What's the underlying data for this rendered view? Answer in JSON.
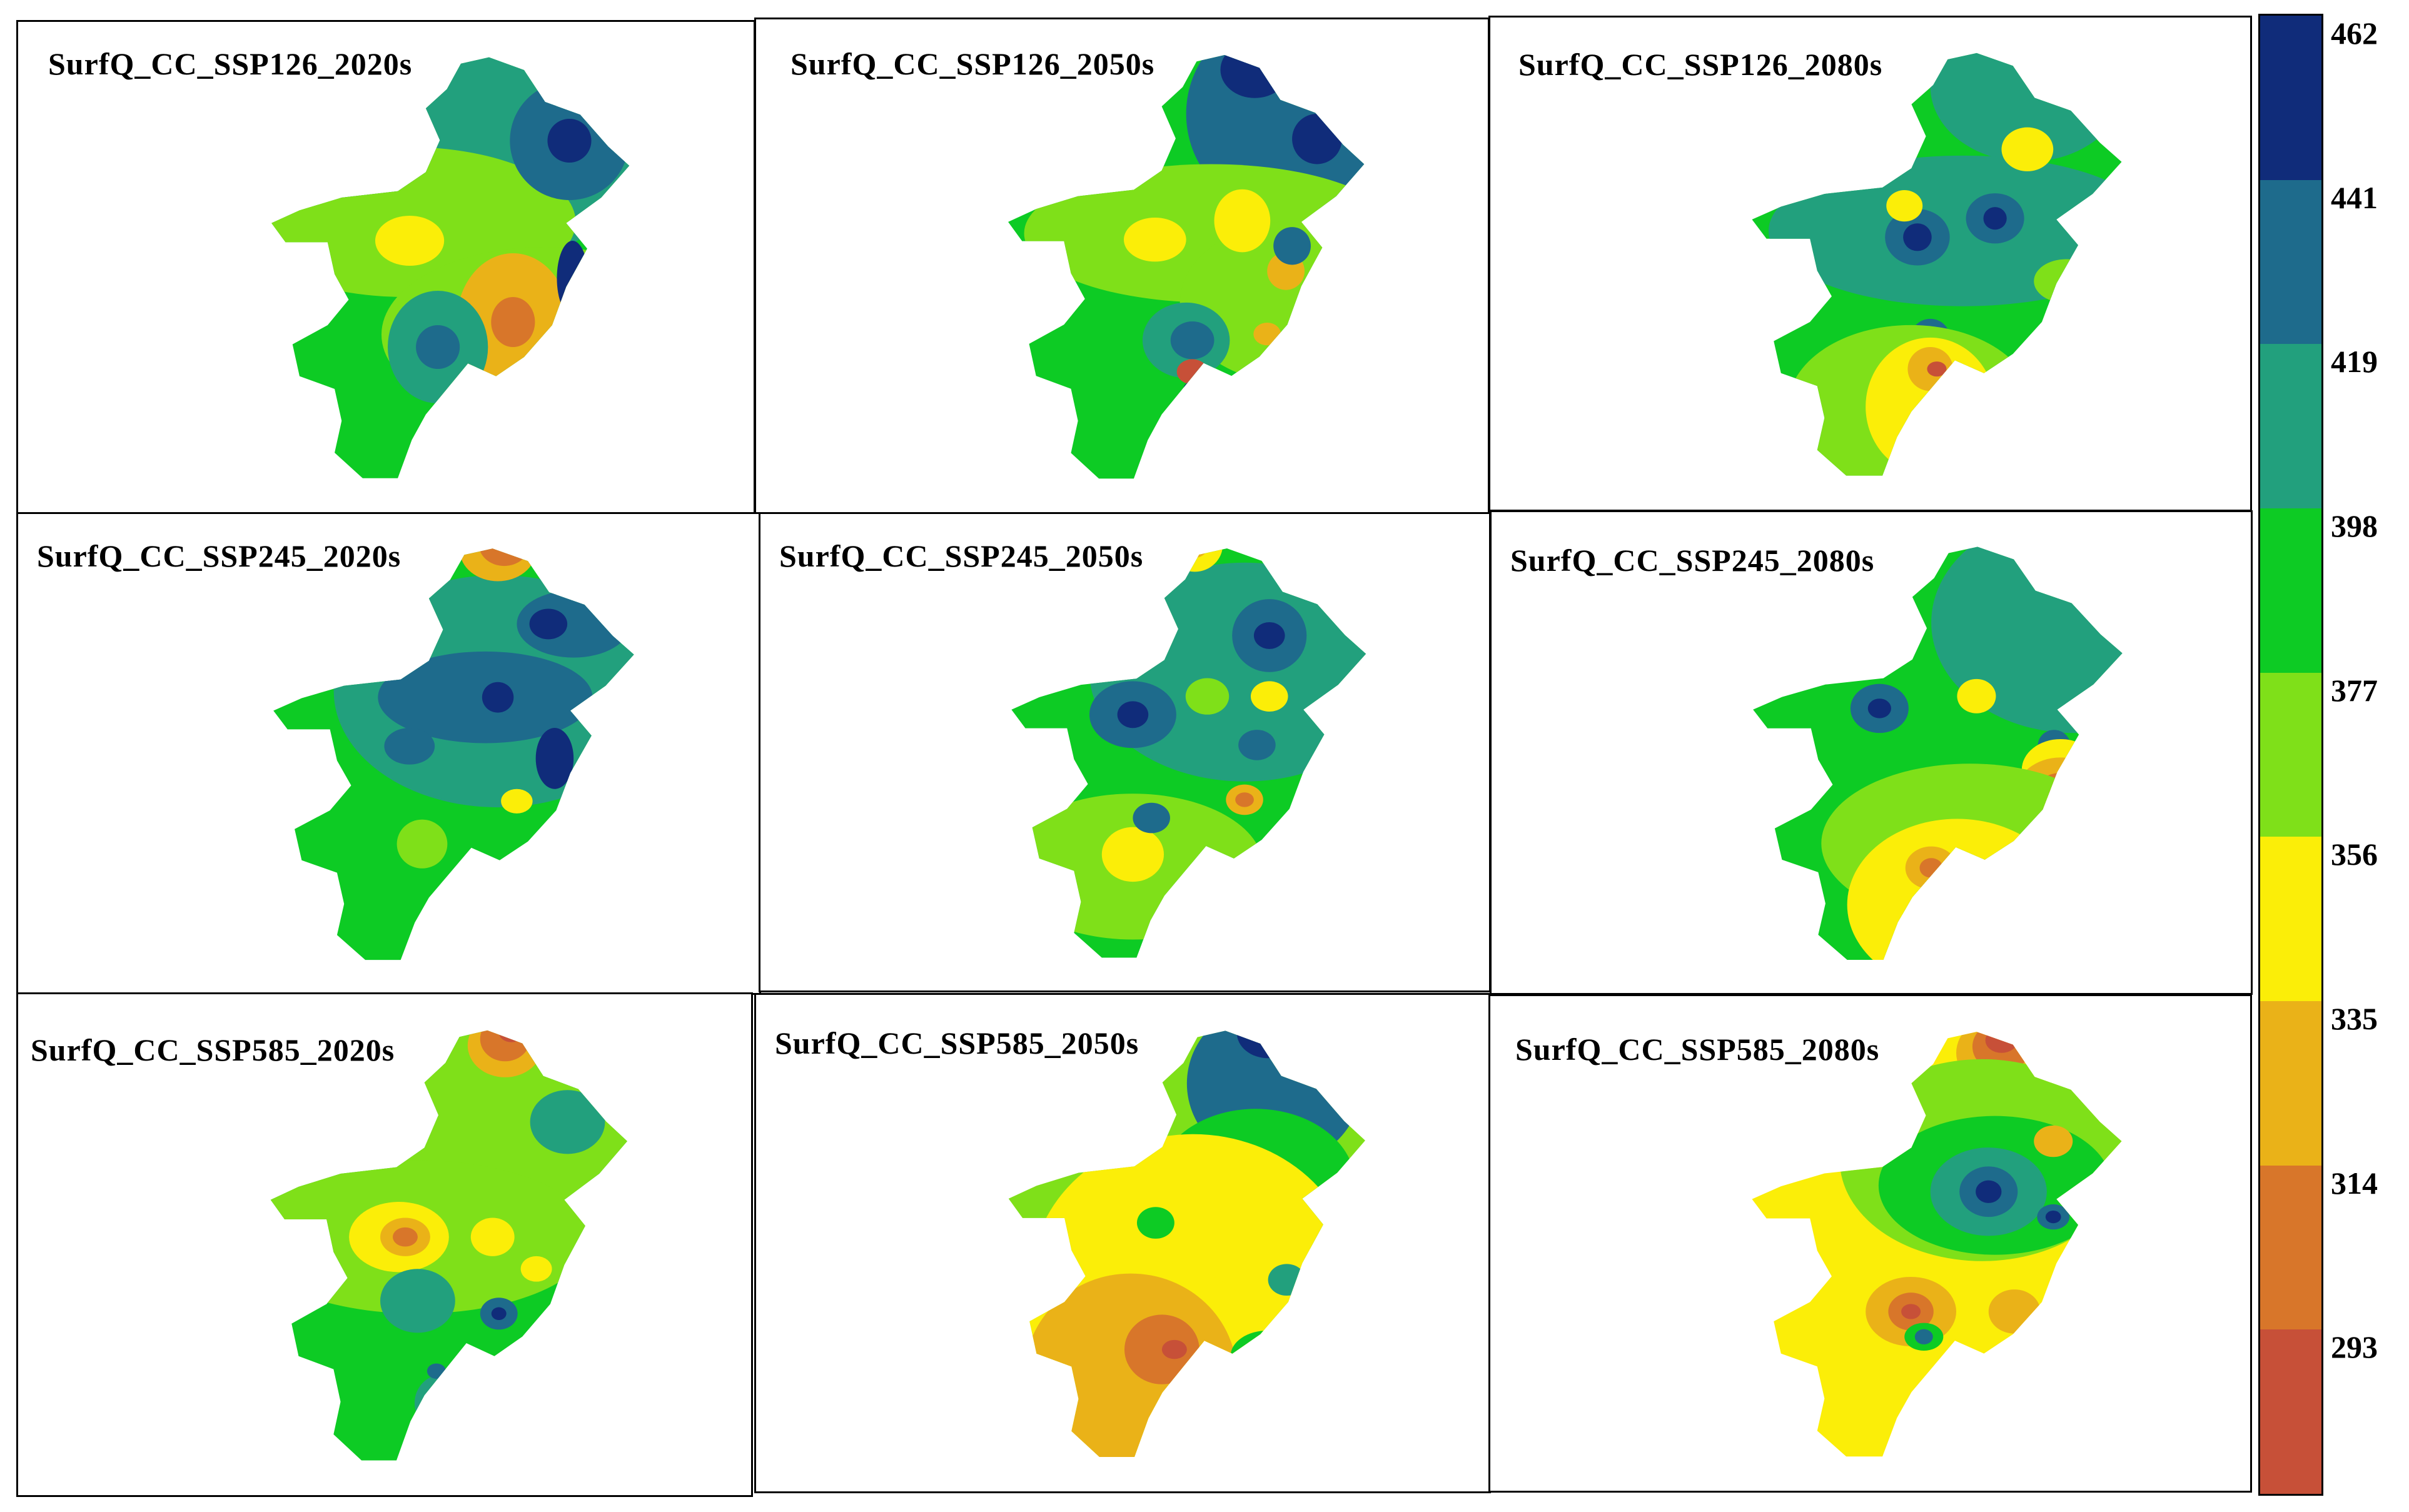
{
  "legend": {
    "labels": [
      "462",
      "441",
      "419",
      "398",
      "377",
      "356",
      "335",
      "314",
      "293"
    ],
    "colors": [
      "#102c7a",
      "#1e6b8c",
      "#22a07d",
      "#0dcb24",
      "#7fe019",
      "#fbee08",
      "#eab218",
      "#d8762a",
      "#c75038"
    ]
  },
  "panels": [
    {
      "title": "SurfQ_CC_SSP126_2020s"
    },
    {
      "title": "SurfQ_CC_SSP126_2050s"
    },
    {
      "title": "SurfQ_CC_SSP126_2080s"
    },
    {
      "title": "SurfQ_CC_SSP245_2020s"
    },
    {
      "title": "SurfQ_CC_SSP245_2050s"
    },
    {
      "title": "SurfQ_CC_SSP245_2080s"
    },
    {
      "title": "SurfQ_CC_SSP585_2020s"
    },
    {
      "title": "SurfQ_CC_SSP585_2050s"
    },
    {
      "title": "SurfQ_CC_SSP585_2080s"
    }
  ]
}
